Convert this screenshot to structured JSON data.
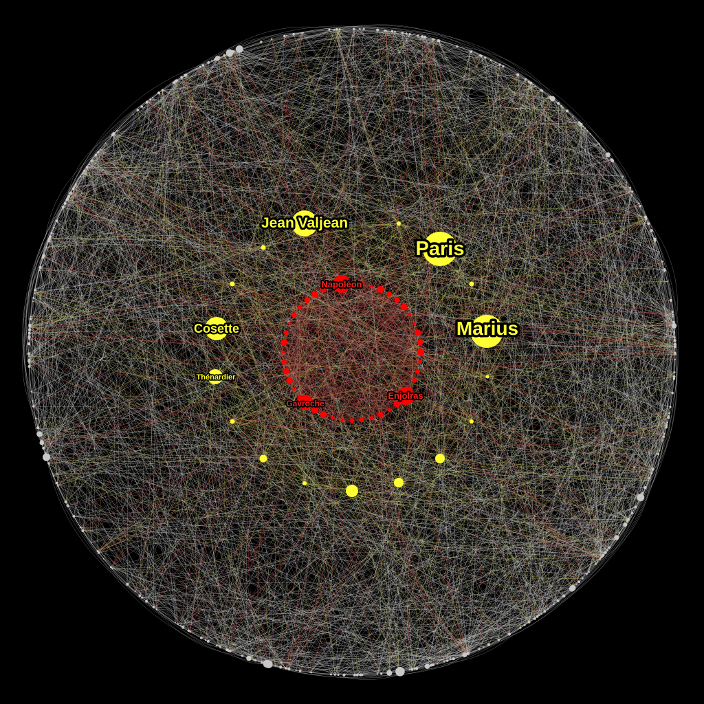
{
  "colors": {
    "background": "#000000",
    "periphery_node": "#c8c8c8",
    "periphery_edge": "#d0d0d0",
    "ring_node": "#ffff33",
    "core_node": "#ff0000",
    "edge_yellow": "#c8c85a",
    "edge_red": "#b43c3c"
  },
  "labels": {
    "jean_valjean": "Jean Valjean",
    "paris": "Paris",
    "marius": "Marius",
    "cosette": "Cosette",
    "thenardier": "Thénardier",
    "napoleon": "Napoléon",
    "gavroche": "Gavroche",
    "enjolras": "Enjolras"
  }
}
